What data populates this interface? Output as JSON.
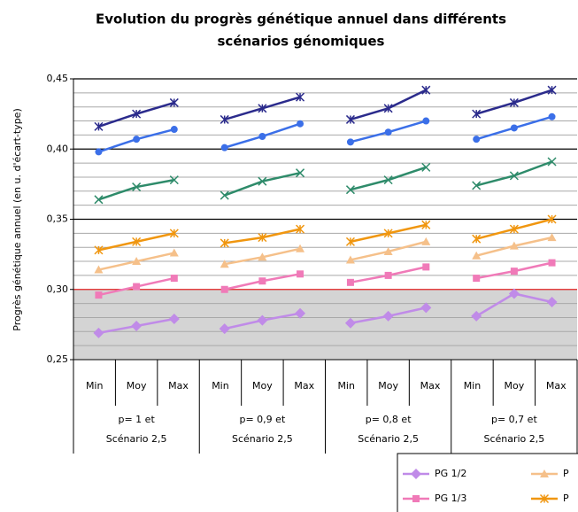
{
  "chart_data": {
    "type": "line",
    "title": [
      "Evolution du progrès génétique annuel dans différents",
      "scénarios génomiques"
    ],
    "y_label": "Progrès génétique annuel (en u. d'écart-type)",
    "categories": [
      "Min",
      "Moy",
      "Max",
      "Min",
      "Moy",
      "Max",
      "Min",
      "Moy",
      "Max",
      "Min",
      "Moy",
      "Max"
    ],
    "groups": [
      [
        "p= 1 et",
        "Scénario  2,5"
      ],
      [
        "p= 0,9 et",
        "Scénario  2,5"
      ],
      [
        "p= 0,8 et",
        "Scénario  2,5"
      ],
      [
        "p= 0,7 et",
        "Scénario  2,5"
      ]
    ],
    "ylim": [
      0.25,
      0.45
    ],
    "yticks": [
      {
        "value": 0.25,
        "label": "0,25"
      },
      {
        "value": 0.3,
        "label": "0,30"
      },
      {
        "value": 0.35,
        "label": "0,35"
      },
      {
        "value": 0.4,
        "label": "0,40"
      },
      {
        "value": 0.45,
        "label": "0,45"
      }
    ],
    "threshold": 0.3,
    "grid": true,
    "series": [
      {
        "color": "#2b2b8c",
        "marker": "star",
        "values": [
          0.416,
          0.425,
          0.433,
          0.421,
          0.429,
          0.437,
          0.421,
          0.429,
          0.442,
          0.425,
          0.433,
          0.442
        ]
      },
      {
        "color": "#3b6fe8",
        "marker": "circle",
        "values": [
          0.398,
          0.407,
          0.414,
          0.401,
          0.409,
          0.418,
          0.405,
          0.412,
          0.42,
          0.407,
          0.415,
          0.423
        ]
      },
      {
        "color": "#2e8b6a",
        "marker": "x",
        "values": [
          0.364,
          0.373,
          0.378,
          0.367,
          0.377,
          0.383,
          0.371,
          0.378,
          0.387,
          0.374,
          0.381,
          0.391
        ]
      },
      {
        "name": "P",
        "color": "#f0960f",
        "marker": "star",
        "values": [
          0.328,
          0.334,
          0.34,
          0.333,
          0.337,
          0.343,
          0.334,
          0.34,
          0.346,
          0.336,
          0.343,
          0.35
        ]
      },
      {
        "name": "P",
        "color": "#f5c08a",
        "marker": "triangle",
        "values": [
          0.314,
          0.32,
          0.326,
          0.318,
          0.323,
          0.329,
          0.321,
          0.327,
          0.334,
          0.324,
          0.331,
          0.337
        ]
      },
      {
        "name": "PG 1/3",
        "color": "#f07ab8",
        "marker": "square",
        "values": [
          0.296,
          0.302,
          0.308,
          0.3,
          0.306,
          0.311,
          0.305,
          0.31,
          0.316,
          0.308,
          0.313,
          0.319
        ]
      },
      {
        "name": "PG 1/2",
        "color": "#c08be8",
        "marker": "diamond",
        "values": [
          0.269,
          0.274,
          0.279,
          0.272,
          0.278,
          0.283,
          0.276,
          0.281,
          0.287,
          0.281,
          0.297,
          0.291
        ]
      }
    ]
  }
}
